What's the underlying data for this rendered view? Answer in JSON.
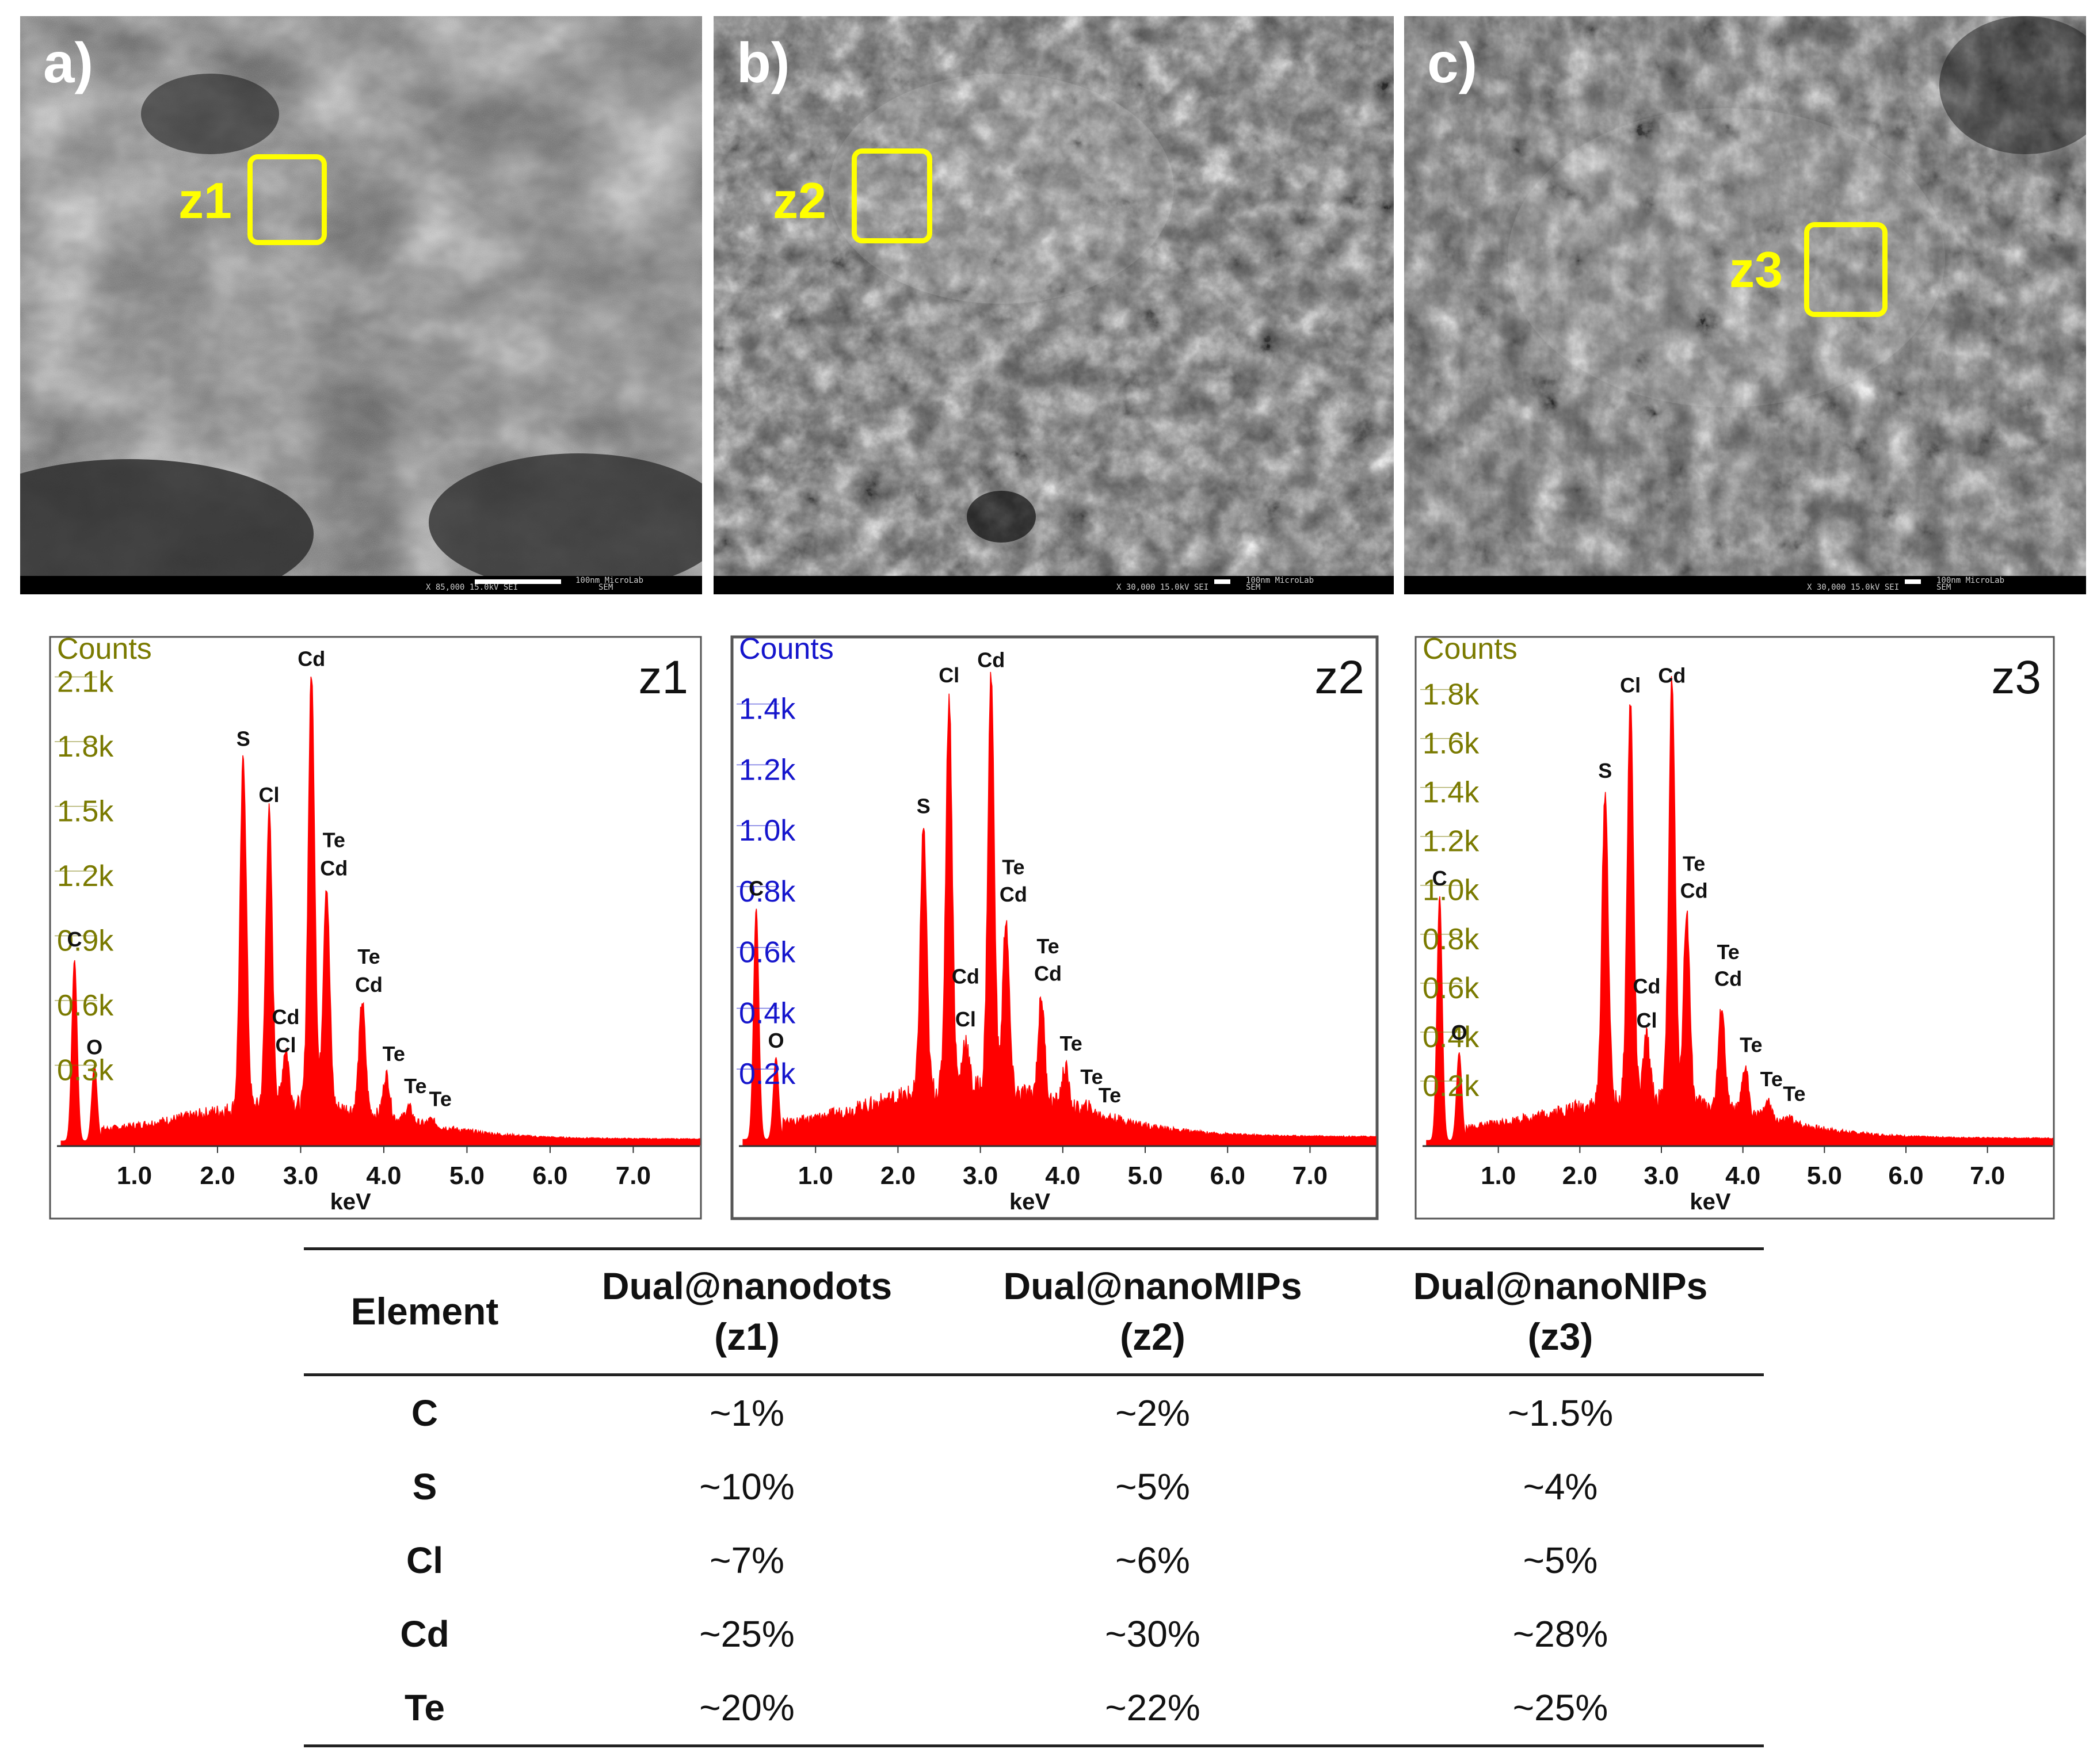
{
  "figure": {
    "panels": [
      {
        "label": "a)",
        "zone": "z1",
        "meta": "X 85,000   15.0kV SEI",
        "scale": "100nm MicroLab",
        "sem": "SEM"
      },
      {
        "label": "b)",
        "zone": "z2",
        "meta": "X 30,000   15.0kV SEI",
        "scale": "100nm MicroLab",
        "sem": "SEM"
      },
      {
        "label": "c)",
        "zone": "z3",
        "meta": "X 30,000   15.0kV SEI",
        "scale": "100nm MicroLab",
        "sem": "SEM"
      }
    ]
  },
  "chart_data": [
    {
      "type": "area",
      "title": "z1",
      "ylabel": "Counts",
      "xlabel": "keV",
      "xlim": [
        0,
        7.8
      ],
      "ylim": [
        0,
        2200
      ],
      "x_ticks": [
        "1.0",
        "2.0",
        "3.0",
        "4.0",
        "5.0",
        "6.0",
        "7.0"
      ],
      "y_ticks": [
        {
          "label": "0.3k",
          "value": 300
        },
        {
          "label": "0.6k",
          "value": 600
        },
        {
          "label": "0.9k",
          "value": 900
        },
        {
          "label": "1.2k",
          "value": 1200
        },
        {
          "label": "1.5k",
          "value": 1500
        },
        {
          "label": "1.8k",
          "value": 1800
        },
        {
          "label": "2.1k",
          "value": 2100
        }
      ],
      "axis_color": "#7a7a00",
      "peaks": [
        {
          "element": "C",
          "energy": 0.28,
          "counts": 840
        },
        {
          "element": "O",
          "energy": 0.52,
          "counts": 350
        },
        {
          "element": "S",
          "energy": 2.31,
          "counts": 1780
        },
        {
          "element": "Cl",
          "energy": 2.62,
          "counts": 1530
        },
        {
          "element": "Cl",
          "energy": 2.82,
          "counts": 430
        },
        {
          "element": "Cd",
          "energy": 3.13,
          "counts": 2170
        },
        {
          "element": "Te/Cd",
          "energy": 3.31,
          "counts": 1190
        },
        {
          "element": "Te/Cd",
          "energy": 3.74,
          "counts": 650
        },
        {
          "element": "Te",
          "energy": 4.03,
          "counts": 310
        },
        {
          "element": "Te",
          "energy": 4.3,
          "counts": 160
        },
        {
          "element": "Te",
          "energy": 4.57,
          "counts": 100
        }
      ],
      "annotations": [
        {
          "text": "C",
          "energy": 0.28,
          "counts": 920
        },
        {
          "text": "O",
          "energy": 0.52,
          "counts": 420
        },
        {
          "text": "S",
          "energy": 2.31,
          "counts": 1850
        },
        {
          "text": "Cl",
          "energy": 2.62,
          "counts": 1590
        },
        {
          "text": "Cd",
          "energy": 2.82,
          "counts": 560
        },
        {
          "text": "Cl",
          "energy": 2.82,
          "counts": 430
        },
        {
          "text": "Cd",
          "energy": 3.13,
          "counts": 2220
        },
        {
          "text": "Te",
          "energy": 3.4,
          "counts": 1380
        },
        {
          "text": "Cd",
          "energy": 3.4,
          "counts": 1250
        },
        {
          "text": "Te",
          "energy": 3.82,
          "counts": 840
        },
        {
          "text": "Cd",
          "energy": 3.82,
          "counts": 710
        },
        {
          "text": "Te",
          "energy": 4.12,
          "counts": 390
        },
        {
          "text": "Te",
          "energy": 4.38,
          "counts": 240
        },
        {
          "text": "Te",
          "energy": 4.68,
          "counts": 180
        }
      ]
    },
    {
      "type": "area",
      "title": "z2",
      "ylabel": "Counts",
      "xlabel": "keV",
      "xlim": [
        0,
        7.8
      ],
      "ylim": [
        0,
        1560
      ],
      "x_ticks": [
        "1.0",
        "2.0",
        "3.0",
        "4.0",
        "5.0",
        "6.0",
        "7.0"
      ],
      "y_ticks": [
        {
          "label": "0.2k",
          "value": 200
        },
        {
          "label": "0.4k",
          "value": 400
        },
        {
          "label": "0.6k",
          "value": 600
        },
        {
          "label": "0.8k",
          "value": 800
        },
        {
          "label": "1.0k",
          "value": 1000
        },
        {
          "label": "1.2k",
          "value": 1200
        },
        {
          "label": "1.4k",
          "value": 1400
        }
      ],
      "axis_color": "#1515cc",
      "peaks": [
        {
          "element": "C",
          "energy": 0.28,
          "counts": 760
        },
        {
          "element": "O",
          "energy": 0.52,
          "counts": 270
        },
        {
          "element": "S",
          "energy": 2.31,
          "counts": 1030
        },
        {
          "element": "Cl",
          "energy": 2.62,
          "counts": 1460
        },
        {
          "element": "Cl",
          "energy": 2.82,
          "counts": 330
        },
        {
          "element": "Cd",
          "energy": 3.13,
          "counts": 1530
        },
        {
          "element": "Te/Cd",
          "energy": 3.31,
          "counts": 730
        },
        {
          "element": "Te/Cd",
          "energy": 3.74,
          "counts": 470
        },
        {
          "element": "Te",
          "energy": 4.03,
          "counts": 240
        },
        {
          "element": "Te",
          "energy": 4.3,
          "counts": 110
        }
      ],
      "annotations": [
        {
          "text": "C",
          "energy": 0.28,
          "counts": 820
        },
        {
          "text": "O",
          "energy": 0.52,
          "counts": 320
        },
        {
          "text": "S",
          "energy": 2.31,
          "counts": 1090
        },
        {
          "text": "Cd",
          "energy": 2.82,
          "counts": 530
        },
        {
          "text": "Cl",
          "energy": 2.82,
          "counts": 390
        },
        {
          "text": "Cl",
          "energy": 2.62,
          "counts": 1520
        },
        {
          "text": "Cd",
          "energy": 3.13,
          "counts": 1570
        },
        {
          "text": "Te",
          "energy": 3.4,
          "counts": 890
        },
        {
          "text": "Cd",
          "energy": 3.4,
          "counts": 800
        },
        {
          "text": "Te",
          "energy": 3.82,
          "counts": 630
        },
        {
          "text": "Cd",
          "energy": 3.82,
          "counts": 540
        },
        {
          "text": "Te",
          "energy": 4.1,
          "counts": 310
        },
        {
          "text": "Te",
          "energy": 4.35,
          "counts": 200
        },
        {
          "text": "Te",
          "energy": 4.57,
          "counts": 140
        }
      ]
    },
    {
      "type": "area",
      "title": "z3",
      "ylabel": "Counts",
      "xlabel": "keV",
      "xlim": [
        0,
        7.8
      ],
      "ylim": [
        0,
        1940
      ],
      "x_ticks": [
        "1.0",
        "2.0",
        "3.0",
        "4.0",
        "5.0",
        "6.0",
        "7.0"
      ],
      "y_ticks": [
        {
          "label": "0.2k",
          "value": 200
        },
        {
          "label": "0.4k",
          "value": 400
        },
        {
          "label": "0.6k",
          "value": 600
        },
        {
          "label": "0.8k",
          "value": 800
        },
        {
          "label": "1.0k",
          "value": 1000
        },
        {
          "label": "1.2k",
          "value": 1200
        },
        {
          "label": "1.4k",
          "value": 1400
        },
        {
          "label": "1.6k",
          "value": 1600
        },
        {
          "label": "1.8k",
          "value": 1800
        }
      ],
      "axis_color": "#7a7a00",
      "peaks": [
        {
          "element": "C",
          "energy": 0.28,
          "counts": 1000
        },
        {
          "element": "O",
          "energy": 0.52,
          "counts": 360
        },
        {
          "element": "S",
          "energy": 2.31,
          "counts": 1430
        },
        {
          "element": "Cl",
          "energy": 2.62,
          "counts": 1800
        },
        {
          "element": "Cl",
          "energy": 2.82,
          "counts": 430
        },
        {
          "element": "Cd",
          "energy": 3.13,
          "counts": 1880
        },
        {
          "element": "Te/Cd",
          "energy": 3.31,
          "counts": 940
        },
        {
          "element": "Te/Cd",
          "energy": 3.74,
          "counts": 550
        },
        {
          "element": "Te",
          "energy": 4.03,
          "counts": 300
        },
        {
          "element": "Te",
          "energy": 4.3,
          "counts": 160
        },
        {
          "element": "Te",
          "energy": 4.57,
          "counts": 90
        }
      ],
      "annotations": [
        {
          "text": "C",
          "energy": 0.28,
          "counts": 1060
        },
        {
          "text": "O",
          "energy": 0.52,
          "counts": 430
        },
        {
          "text": "S",
          "energy": 2.31,
          "counts": 1500
        },
        {
          "text": "Cd",
          "energy": 2.82,
          "counts": 620
        },
        {
          "text": "Cl",
          "energy": 2.82,
          "counts": 480
        },
        {
          "text": "Cl",
          "energy": 2.62,
          "counts": 1850
        },
        {
          "text": "Cd",
          "energy": 3.13,
          "counts": 1890
        },
        {
          "text": "Te",
          "energy": 3.4,
          "counts": 1120
        },
        {
          "text": "Cd",
          "energy": 3.4,
          "counts": 1010
        },
        {
          "text": "Te",
          "energy": 3.82,
          "counts": 760
        },
        {
          "text": "Cd",
          "energy": 3.82,
          "counts": 650
        },
        {
          "text": "Te",
          "energy": 4.1,
          "counts": 380
        },
        {
          "text": "Te",
          "energy": 4.35,
          "counts": 240
        },
        {
          "text": "Te",
          "energy": 4.63,
          "counts": 180
        }
      ]
    }
  ],
  "table": {
    "headers": [
      {
        "line1": "Element",
        "line2": ""
      },
      {
        "line1": "Dual@nanodots",
        "line2": "(z1)"
      },
      {
        "line1": "Dual@nanoMIPs",
        "line2": "(z2)"
      },
      {
        "line1": "Dual@nanoNIPs",
        "line2": "(z3)"
      }
    ],
    "rows": [
      [
        "C",
        "~1%",
        "~2%",
        "~1.5%"
      ],
      [
        "S",
        "~10%",
        "~5%",
        "~4%"
      ],
      [
        "Cl",
        "~7%",
        "~6%",
        "~5%"
      ],
      [
        "Cd",
        "~25%",
        "~30%",
        "~28%"
      ],
      [
        "Te",
        "~20%",
        "~22%",
        "~25%"
      ]
    ]
  },
  "colors": {
    "spectrum": "#ff0000",
    "zone": "#ffff00",
    "table_rule": "#222222"
  }
}
